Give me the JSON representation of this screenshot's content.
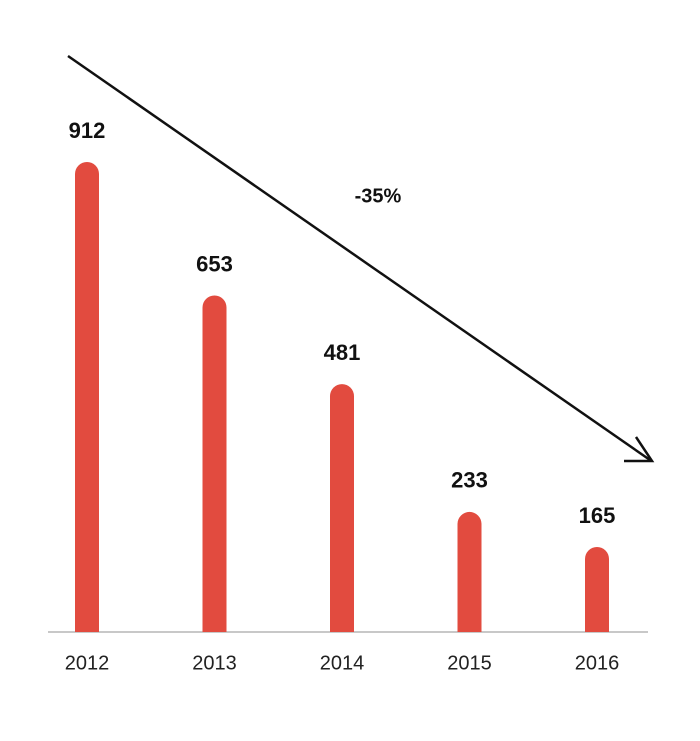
{
  "chart_data": {
    "type": "bar",
    "categories": [
      "2012",
      "2013",
      "2014",
      "2015",
      "2016"
    ],
    "values": [
      912,
      653,
      481,
      233,
      165
    ],
    "color": "#e24b3f",
    "annotation": "-35%",
    "grid": false
  }
}
